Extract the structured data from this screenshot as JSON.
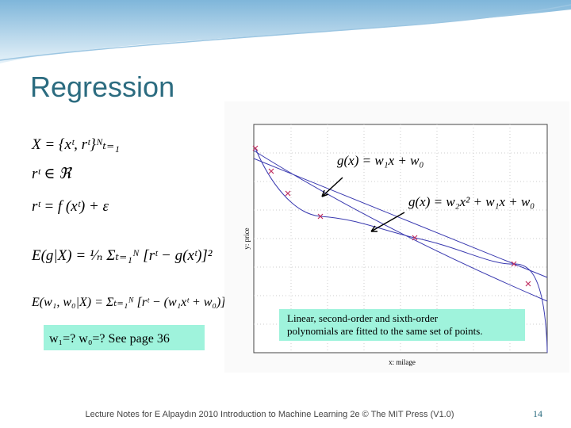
{
  "title": "Regression",
  "formulas": [
    "X = {xᵗ, rᵗ}ᴺₜ₌₁",
    "rᵗ ∈ ℜ",
    "rᵗ = f (xᵗ) + ε",
    "E(g|X) = ¹⁄ₙ Σₜ₌₁ᴺ [rᵗ − g(xᵗ)]²",
    "E(w₁, w₀|X) = Σₜ₌₁ᴺ [rᵗ − (w₁xᵗ + w₀)]²"
  ],
  "question": "w₁=? w₀=? See page 36",
  "plot": {
    "linear_label": "g(x) = w₁x + w₀",
    "quadratic_label": "g(x) = w₂x² + w₁x + w₀",
    "x_label": "x: milage",
    "y_label": "y: price",
    "caption": [
      "Linear, second-order and sixth-order",
      "polynomials are fitted to the same set of points."
    ]
  },
  "footer": "Lecture Notes for E Alpaydın 2010 Introduction to Machine Learning 2e © The MIT Press (V1.0)",
  "page_number": "14"
}
